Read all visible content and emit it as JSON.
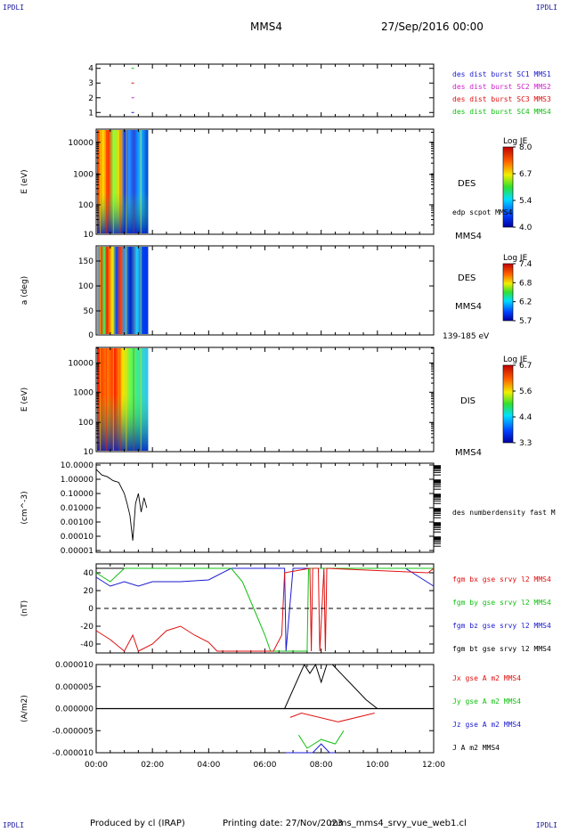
{
  "corners": {
    "tl": "IPDLI",
    "tr": "IPDLI",
    "bl": "IPDLI",
    "br": "IPDLI"
  },
  "header": {
    "spacecraft": "MMS4",
    "date": "27/Sep/2016 00:00"
  },
  "footer": {
    "producer": "Produced by cl (IRAP)",
    "printed": "Printing date: 27/Nov/2023",
    "file": "mms_mms4_srvy_vue_web1.cl"
  },
  "x_axis": {
    "ticks": [
      "00:00",
      "02:00",
      "04:00",
      "06:00",
      "08:00",
      "10:00",
      "12:00"
    ]
  },
  "chart_data": [
    {
      "type": "scatter",
      "id": "burst",
      "yticks": [
        "4",
        "3",
        "2",
        "1"
      ],
      "legend": [
        {
          "label": "des dist burst SC1 MMS1",
          "color": "#1a1ad0"
        },
        {
          "label": "des dist burst SC2 MMS2",
          "color": "#d020d0"
        },
        {
          "label": "des dist burst SC3 MMS3",
          "color": "#e01010"
        },
        {
          "label": "des dist burst SC4 MMS4",
          "color": "#10c010"
        }
      ],
      "marks": [
        {
          "sc": 4,
          "time_h": 1.3
        },
        {
          "sc": 3,
          "time_h": 1.3
        },
        {
          "sc": 2,
          "time_h": 1.3
        },
        {
          "sc": 1,
          "time_h": 1.3
        }
      ]
    },
    {
      "type": "heatmap",
      "id": "des_energy",
      "ylabel": "E (eV)",
      "yticks": [
        "10000",
        "1000",
        "100",
        "10"
      ],
      "data_end_h": 1.85,
      "labels": [
        "DES",
        "edp scpot MMS4",
        "MMS4"
      ],
      "colorbar": {
        "title": "Log JE",
        "ticks": [
          "8.0",
          "6.7",
          "5.4",
          "4.0"
        ]
      }
    },
    {
      "type": "heatmap",
      "id": "des_pitch",
      "ylabel": "a (deg)",
      "yticks": [
        "150",
        "100",
        "50",
        "0"
      ],
      "data_end_h": 1.85,
      "labels": [
        "DES",
        "MMS4",
        "139-185 eV"
      ],
      "colorbar": {
        "title": "Log JE",
        "ticks": [
          "7.4",
          "6.8",
          "6.2",
          "5.7"
        ]
      }
    },
    {
      "type": "heatmap",
      "id": "dis_energy",
      "ylabel": "E (eV)",
      "yticks": [
        "10000",
        "1000",
        "100",
        "10"
      ],
      "data_end_h": 1.85,
      "labels": [
        "DIS",
        "MMS4"
      ],
      "colorbar": {
        "title": "Log JE",
        "ticks": [
          "6.7",
          "5.6",
          "4.4",
          "3.3"
        ]
      }
    },
    {
      "type": "line",
      "id": "density",
      "ylabel": "(cm^-3)",
      "yticks": [
        "10.0000",
        "1.00000",
        "0.10000",
        "0.01000",
        "0.00100",
        "0.00010",
        "0.00001"
      ],
      "legend": [
        {
          "label": "des numberdensity fast M",
          "color": "#000000"
        }
      ],
      "series": [
        {
          "name": "des numberdensity fast M",
          "time_h": [
            0.0,
            0.2,
            0.4,
            0.6,
            0.8,
            1.0,
            1.1,
            1.2,
            1.3,
            1.4,
            1.5,
            1.6,
            1.7,
            1.8
          ],
          "values": [
            5.0,
            2.0,
            1.5,
            0.8,
            0.6,
            0.1,
            0.02,
            0.003,
            5e-05,
            0.02,
            0.1,
            0.005,
            0.05,
            0.01
          ]
        }
      ]
    },
    {
      "type": "line",
      "id": "fgm",
      "ylabel": "(nT)",
      "ylim": [
        -50,
        50
      ],
      "yticks": [
        "40",
        "20",
        "0",
        "-20",
        "-40"
      ],
      "legend": [
        {
          "label": "fgm bx gse srvy l2 MMS4",
          "color": "#e01010"
        },
        {
          "label": "fgm by gse srvy l2 MMS4",
          "color": "#10c010"
        },
        {
          "label": "fgm bz gse srvy l2 MMS4",
          "color": "#1a1ad0"
        },
        {
          "label": "fgm bt gse srvy l2 MMS4",
          "color": "#000000"
        }
      ],
      "series": [
        {
          "name": "fgm bx gse srvy l2 MMS4",
          "time_h": [
            0.0,
            0.5,
            1.0,
            1.3,
            1.5,
            2.0,
            2.5,
            3.0,
            3.5,
            4.0,
            4.3,
            6.3,
            6.6,
            6.7,
            7.6,
            7.65,
            7.7,
            7.9,
            7.95,
            8.1,
            8.15,
            8.2,
            11.8,
            12.0
          ],
          "values": [
            -25,
            -35,
            -48,
            -30,
            -48,
            -40,
            -25,
            -20,
            -30,
            -38,
            -48,
            -48,
            -30,
            40,
            45,
            -48,
            45,
            45,
            -48,
            45,
            -48,
            45,
            40,
            45
          ]
        },
        {
          "name": "fgm by gse srvy l2 MMS4",
          "time_h": [
            0.0,
            0.5,
            1.0,
            1.5,
            2.0,
            4.8,
            5.2,
            5.6,
            6.0,
            6.2,
            7.5,
            7.55,
            9.5,
            9.55,
            12.0
          ],
          "values": [
            40,
            30,
            45,
            45,
            45,
            45,
            30,
            0,
            -30,
            -48,
            -48,
            45,
            45,
            45,
            45
          ]
        },
        {
          "name": "fgm bz gse srvy l2 MMS4",
          "time_h": [
            0.0,
            0.5,
            1.0,
            1.5,
            2.0,
            3.0,
            4.0,
            4.8,
            5.0,
            6.7,
            6.75,
            7.0,
            11.0,
            11.5,
            12.0
          ],
          "values": [
            35,
            25,
            30,
            25,
            30,
            30,
            32,
            45,
            45,
            45,
            -48,
            45,
            45,
            35,
            25
          ]
        },
        {
          "name": "fgm bt gse srvy l2 MMS4",
          "time_h": [
            0.0,
            0.5,
            1.0,
            1.5,
            2.0
          ],
          "values": [
            45,
            45,
            45,
            45,
            45
          ]
        }
      ]
    },
    {
      "type": "line",
      "id": "current",
      "ylabel": "(A/m2)",
      "ylim": [
        -1e-05,
        1e-05
      ],
      "yticks": [
        "0.000010",
        "0.000005",
        "0.000000",
        "-0.000005",
        "-0.000010"
      ],
      "legend": [
        {
          "label": "Jx gse A m2 MMS4",
          "color": "#e01010"
        },
        {
          "label": "Jy gse A m2 MMS4",
          "color": "#10c010"
        },
        {
          "label": "Jz gse A m2 MMS4",
          "color": "#1a1ad0"
        },
        {
          "label": "J A m2 MMS4",
          "color": "#000000"
        }
      ],
      "series": [
        {
          "name": "J A m2 MMS4",
          "time_h": [
            6.7,
            7.4,
            7.6,
            7.8,
            8.0,
            8.2,
            8.4,
            9.6,
            10.0
          ],
          "values": [
            0,
            1e-05,
            8e-06,
            1e-05,
            6e-06,
            1e-05,
            1e-05,
            2e-06,
            0
          ]
        },
        {
          "name": "Jz gse A m2 MMS4",
          "time_h": [
            6.75,
            7.5,
            7.7,
            8.0,
            8.3,
            8.5
          ],
          "values": [
            -1e-05,
            -1e-05,
            -1e-05,
            -8e-06,
            -1e-05,
            -1e-05
          ]
        },
        {
          "name": "Jy gse A m2 MMS4",
          "time_h": [
            7.2,
            7.5,
            8.0,
            8.5,
            8.8
          ],
          "values": [
            -6e-06,
            -9e-06,
            -7e-06,
            -8e-06,
            -5e-06
          ]
        },
        {
          "name": "Jx gse A m2 MMS4",
          "time_h": [
            6.9,
            7.3,
            8.6,
            9.9
          ],
          "values": [
            -2e-06,
            -1e-06,
            -3e-06,
            -1e-06
          ]
        }
      ]
    }
  ]
}
